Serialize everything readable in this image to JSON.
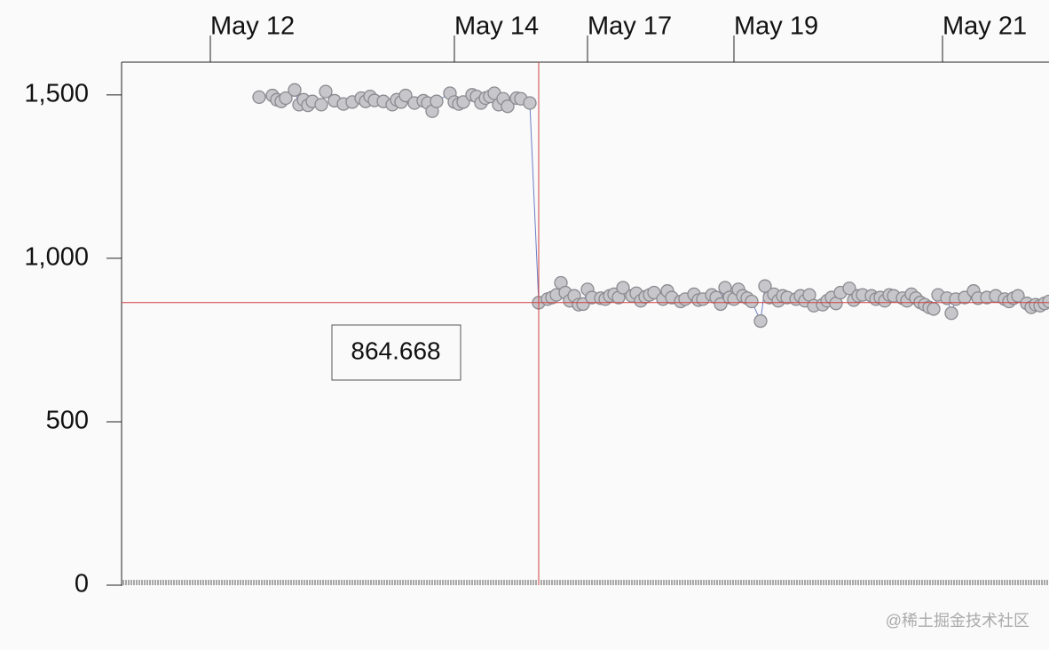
{
  "chart_data": {
    "type": "line",
    "x": [
      31,
      34,
      35,
      36,
      37,
      39,
      40,
      41,
      42,
      43,
      45,
      46,
      48,
      50,
      52,
      54,
      55,
      56,
      57,
      59,
      61,
      62,
      63,
      64,
      66,
      68,
      69,
      70,
      71,
      74,
      75,
      76,
      77,
      79,
      80,
      81,
      82,
      83,
      84,
      85,
      86,
      87,
      89,
      90,
      92,
      94,
      96,
      97,
      98,
      99,
      100,
      101,
      102,
      103,
      104,
      105,
      106,
      108,
      109,
      110,
      111,
      112,
      113,
      115,
      116,
      117,
      118,
      119,
      120,
      122,
      123,
      124,
      126,
      127,
      129,
      130,
      131,
      133,
      134,
      135,
      136,
      137,
      138,
      139,
      140,
      141,
      142,
      144,
      145,
      146,
      147,
      148,
      149,
      150,
      152,
      153,
      154,
      155,
      156,
      158,
      159,
      160,
      161,
      162,
      164,
      165,
      166,
      167,
      169,
      170,
      171,
      172,
      173,
      174,
      176,
      177,
      178,
      179,
      180,
      181,
      182,
      183,
      184,
      186,
      187,
      188,
      190,
      192,
      193,
      195,
      197,
      199,
      200,
      201,
      202,
      204,
      205,
      206,
      207,
      208,
      209
    ],
    "series": [
      {
        "color": "#6b7fc4",
        "marker_color": "#c6c6cb",
        "values": [
          1493,
          1498,
          1485,
          1480,
          1490,
          1515,
          1470,
          1485,
          1468,
          1480,
          1470,
          1510,
          1482,
          1472,
          1478,
          1490,
          1480,
          1495,
          1483,
          1480,
          1470,
          1485,
          1478,
          1498,
          1475,
          1482,
          1475,
          1450,
          1480,
          1505,
          1478,
          1472,
          1478,
          1500,
          1495,
          1475,
          1490,
          1495,
          1505,
          1470,
          1488,
          1465,
          1490,
          1488,
          1475,
          864,
          875,
          880,
          888,
          925,
          895,
          870,
          885,
          858,
          860,
          905,
          880,
          878,
          875,
          885,
          890,
          880,
          910,
          885,
          893,
          870,
          882,
          888,
          895,
          875,
          900,
          880,
          868,
          875,
          890,
          872,
          875,
          888,
          880,
          860,
          910,
          880,
          875,
          905,
          885,
          878,
          868,
          808,
          915,
          880,
          890,
          870,
          885,
          880,
          875,
          885,
          870,
          888,
          855,
          858,
          870,
          880,
          862,
          895,
          908,
          872,
          885,
          888,
          885,
          875,
          880,
          870,
          888,
          885,
          878,
          870,
          890,
          878,
          865,
          858,
          850,
          845,
          888,
          878,
          832,
          875,
          880,
          900,
          878,
          880,
          885,
          875,
          868,
          878,
          885,
          862,
          850,
          858,
          855,
          862,
          868
        ]
      }
    ],
    "xlim": [
      0,
      209
    ],
    "xticks": [
      {
        "value": 20,
        "label": "May 12"
      },
      {
        "value": 75,
        "label": "May 14"
      },
      {
        "value": 105,
        "label": "May 17"
      },
      {
        "value": 138,
        "label": "May 19"
      },
      {
        "value": 185,
        "label": "May 21"
      }
    ],
    "ylim": [
      0,
      1600
    ],
    "yticks": [
      0,
      {
        "value": 500,
        "label": "500"
      },
      {
        "value": 1000,
        "label": "1,000"
      },
      {
        "value": 1500,
        "label": "1,500"
      }
    ],
    "crosshair": {
      "x": 94,
      "y": 864.668,
      "color": "#d04040"
    },
    "watermark": "@稀土掘金技术社区"
  }
}
